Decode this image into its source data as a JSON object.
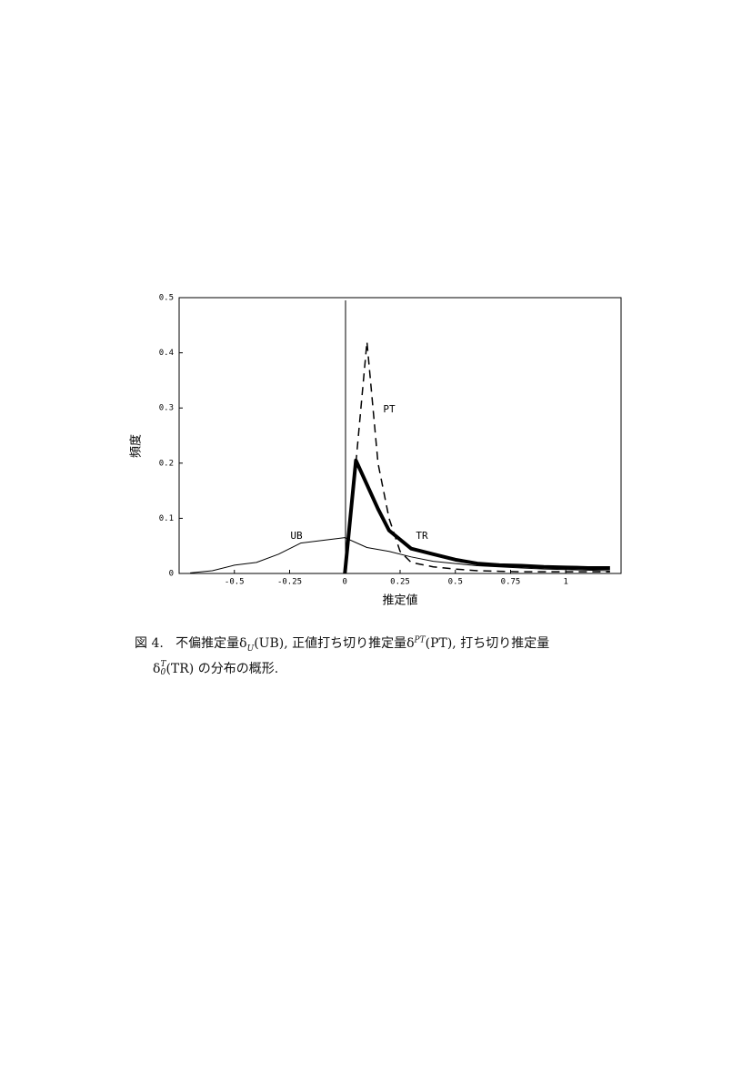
{
  "chart_data": {
    "type": "line",
    "xlabel": "推定値",
    "ylabel": "頻度",
    "xlim": [
      -0.75,
      1.25
    ],
    "ylim": [
      0,
      0.5
    ],
    "xticks": [
      {
        "value": -0.5,
        "label": "-0.5"
      },
      {
        "value": -0.25,
        "label": "-0.25"
      },
      0,
      0.25,
      0.5,
      0.75,
      1
    ],
    "yticks": [
      0,
      0.1,
      0.2,
      0.3,
      0.4,
      0.5
    ],
    "series": [
      {
        "name": "UB",
        "color": "#000000",
        "style": "thin",
        "x": [
          -0.7,
          -0.6,
          -0.5,
          -0.4,
          -0.3,
          -0.2,
          -0.1,
          0,
          0.1,
          0.2,
          0.3,
          0.4,
          0.5,
          0.6,
          0.7,
          0.8,
          0.9,
          1.0,
          1.1,
          1.2
        ],
        "values": [
          0.001,
          0.005,
          0.015,
          0.02,
          0.035,
          0.055,
          0.06,
          0.065,
          0.047,
          0.04,
          0.03,
          0.022,
          0.018,
          0.014,
          0.012,
          0.01,
          0.008,
          0.007,
          0.006,
          0.005
        ]
      },
      {
        "name": "PT",
        "color": "#000000",
        "style": "dashed",
        "x": [
          0.05,
          0.1,
          0.15,
          0.2,
          0.25,
          0.3,
          0.4,
          0.5,
          0.6,
          0.7,
          0.8,
          1.0,
          1.2
        ],
        "values": [
          0.2,
          0.42,
          0.2,
          0.1,
          0.04,
          0.02,
          0.012,
          0.008,
          0.005,
          0.004,
          0.003,
          0.003,
          0.003
        ]
      },
      {
        "name": "TR",
        "color": "#000000",
        "style": "thick",
        "x": [
          0,
          0.05,
          0.15,
          0.2,
          0.3,
          0.4,
          0.5,
          0.6,
          0.7,
          0.8,
          0.9,
          1.0,
          1.1,
          1.2
        ],
        "values": [
          0,
          0.205,
          0.117,
          0.078,
          0.045,
          0.035,
          0.025,
          0.018,
          0.015,
          0.014,
          0.012,
          0.011,
          0.01,
          0.01
        ]
      }
    ]
  },
  "caption": {
    "line1": [
      "図 4.",
      "不偏推定量δ",
      "U",
      "(UB), 正値打ち切り推定量δ",
      "PT",
      "(PT), 打ち切り推定量"
    ],
    "line2": [
      "δ",
      "T",
      "0",
      "(TR) の分布の概形."
    ]
  }
}
